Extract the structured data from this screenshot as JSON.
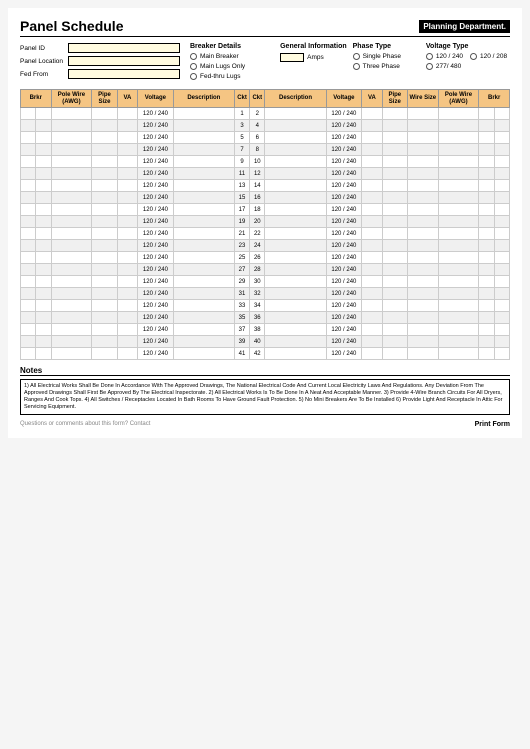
{
  "title": "Panel Schedule",
  "dept": "Planning Department.",
  "fields": {
    "panel_id": "Panel ID",
    "panel_location": "Panel Location",
    "fed_from": "Fed From"
  },
  "sections": {
    "breaker": {
      "heading": "Breaker Details",
      "opts": [
        "Main Breaker",
        "Main Lugs Only",
        "Fed-thru Lugs"
      ]
    },
    "phase": {
      "heading": "Phase Type",
      "opts": [
        "Single Phase",
        "Three Phase"
      ]
    },
    "general": {
      "heading": "General Information",
      "amps_label": "Amps"
    },
    "voltage": {
      "heading": "Voltage Type",
      "opts": [
        "120 / 240",
        "120 / 208",
        "277/ 480"
      ]
    }
  },
  "headers": {
    "brkr": "Brkr",
    "pole_wire": "Pole Wire (AWG)",
    "pipe_size": "Pipe Size",
    "va": "VA",
    "voltage": "Voltage",
    "description": "Description",
    "ckt": "Ckt",
    "wire_size": "Wire Size"
  },
  "voltage_cell": "120 / 240",
  "rows": 21,
  "notes_heading": "Notes",
  "notes_text": "1) All Electrical Works Shall Be Done In Accordance With The Approved Drawings, The National Electrical Code And Current Local Electricity Laws And Regulations. Any Deviation From The Approved Drawings Shall First Be Approved By The Electrical Inspectorate.  2) All Electrical Works Is To Be Done In A Neat And Acceptable Manner.  3) Provide 4-Wire Branch Circuits For All Dryers, Ranges And Cook Tops.  4) All Switches / Receptacles Located In Bath Rooms To Have Ground Fault Protection.  5) No Mini Breakers Are To Be Installed  6) Provide Light And Receptacle In Attic For Servicing Equipment.",
  "footer_q": "Questions or comments about this form? Contact",
  "print": "Print Form"
}
